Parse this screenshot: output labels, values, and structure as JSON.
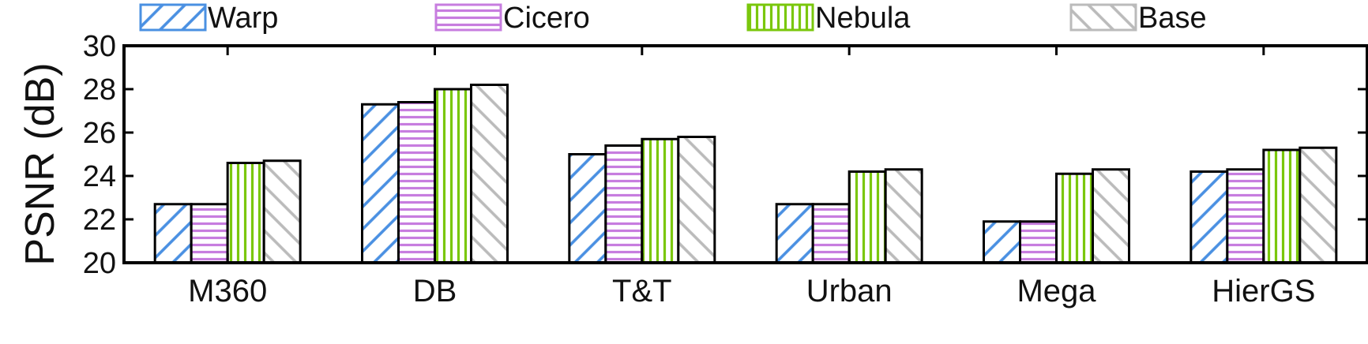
{
  "chart_data": {
    "type": "bar",
    "title": "",
    "xlabel": "",
    "ylabel": "PSNR (dB)",
    "ylim": [
      20,
      30
    ],
    "yticks": [
      20,
      22,
      24,
      26,
      28,
      30
    ],
    "grid": false,
    "legend_position": "top",
    "categories": [
      "M360",
      "DB",
      "T&T",
      "Urban",
      "Mega",
      "HierGS"
    ],
    "series": [
      {
        "name": "Warp",
        "color": "#4a90e2",
        "pattern": "diagonal-up",
        "values": [
          22.7,
          27.3,
          25.0,
          22.7,
          21.9,
          24.2
        ]
      },
      {
        "name": "Cicero",
        "color": "#c77ddf",
        "pattern": "horizontal",
        "values": [
          22.7,
          27.4,
          25.4,
          22.7,
          21.9,
          24.3
        ]
      },
      {
        "name": "Nebula",
        "color": "#7ac70c",
        "pattern": "vertical",
        "values": [
          24.6,
          28.0,
          25.7,
          24.2,
          24.1,
          25.2
        ]
      },
      {
        "name": "Base",
        "color": "#bbbbbb",
        "pattern": "diagonal-down",
        "values": [
          24.7,
          28.2,
          25.8,
          24.3,
          24.3,
          25.3
        ]
      }
    ]
  }
}
